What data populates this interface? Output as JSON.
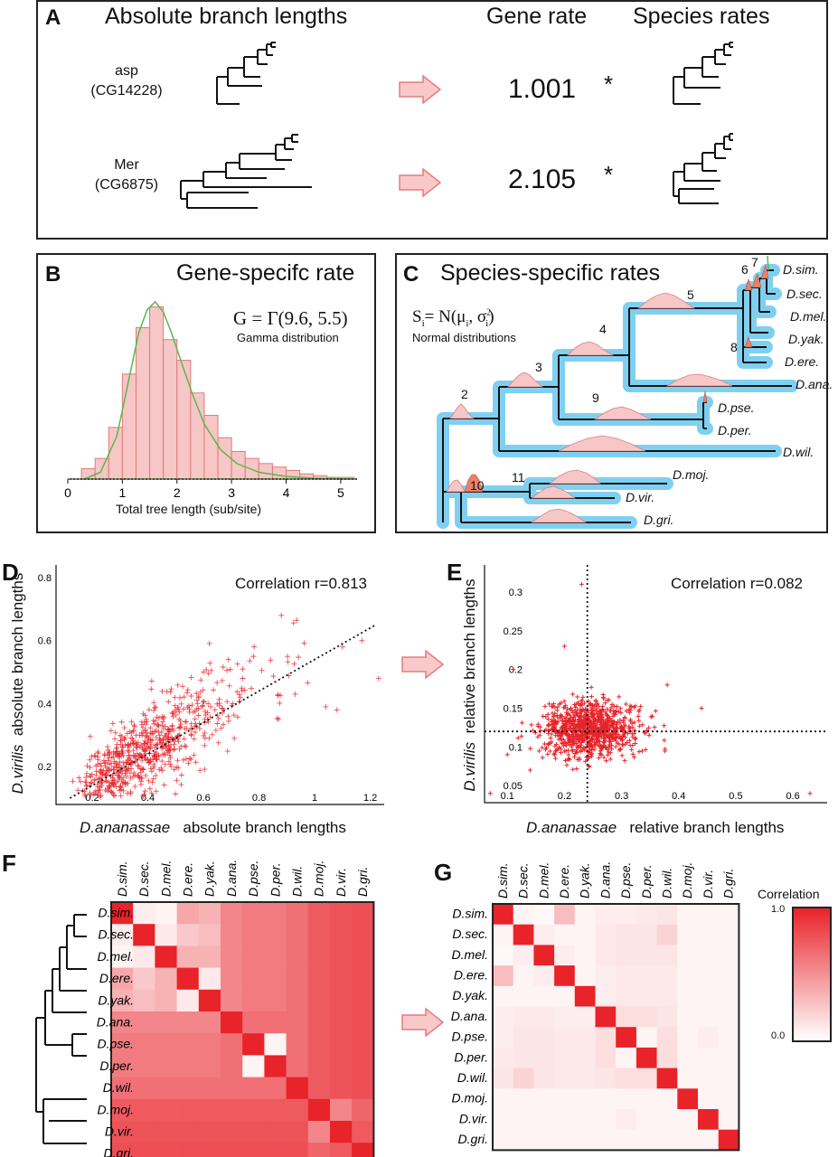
{
  "panelA": {
    "label": "A",
    "heading_abs": "Absolute branch lengths",
    "heading_gene": "Gene rate",
    "heading_species": "Species rates",
    "rows": [
      {
        "gene": "asp",
        "id": "(CG14228)",
        "rate": "1.001",
        "star": "*"
      },
      {
        "gene": "Mer",
        "id": "(CG6875)",
        "rate": "2.105",
        "star": "*"
      }
    ]
  },
  "panelB": {
    "label": "B",
    "title": "Gene-specifc rate",
    "formula": "G = Γ(9.6, 5.5)",
    "formula_note": "Gamma distribution",
    "xlabel": "Total tree length (sub/site)"
  },
  "panelC": {
    "label": "C",
    "title": "Species-specific rates",
    "formula_s": "S",
    "formula_i": "i",
    "formula_rest": "= N(μ",
    "formula_mu_i": "i",
    "formula_sep": ", σ",
    "formula_sig_i": "i",
    "formula_sig_sup": "2",
    "formula_close": ")",
    "formula_note": "Normal distributions",
    "species": [
      "D.sim.",
      "D.sec.",
      "D.mel.",
      "D.yak.",
      "D.ere.",
      "D.ana.",
      "D.pse.",
      "D.per.",
      "D.wil.",
      "D.moj.",
      "D.vir.",
      "D.gri."
    ],
    "node_numbers": [
      "2",
      "3",
      "4",
      "5",
      "6",
      "7",
      "8",
      "9",
      "10",
      "11"
    ]
  },
  "panelD": {
    "label": "D",
    "correlation": "Correlation r=0.813",
    "ylabel_ital": "D.virilis",
    "ylabel_rest": "absolute branch lengths",
    "xlabel_ital": "D.ananassae",
    "xlabel_rest": "absolute branch lengths"
  },
  "panelE": {
    "label": "E",
    "correlation": "Correlation r=0.082",
    "ylabel_ital": "D.virilis",
    "ylabel_rest": "relative branch lengths",
    "xlabel_ital": "D.ananassae",
    "xlabel_rest": "relative branch lengths"
  },
  "panelF": {
    "label": "F"
  },
  "panelG": {
    "label": "G",
    "legend_title": "Correlation",
    "legend_max": "1.0",
    "legend_min": "0.0"
  },
  "heatmap_species": [
    "D.sim.",
    "D.sec.",
    "D.mel.",
    "D.ere.",
    "D.yak.",
    "D.ana.",
    "D.pse.",
    "D.per.",
    "D.wil.",
    "D.moj.",
    "D.vir.",
    "D.gri."
  ],
  "colors": {
    "accent_red": "#e8232a",
    "pink_fill": "#f7c6c6",
    "pink_edge": "#e07a7a",
    "green_curve": "#5bb84a",
    "tree_blue": "#7fd0f0",
    "arrow_fill": "#f9c9c9",
    "arrow_edge": "#e57b7b"
  },
  "chart_data": [
    {
      "type": "bar",
      "id": "panelB-histogram",
      "title": "Gene-specifc rate",
      "xlabel": "Total tree length (sub/site)",
      "ylabel": "",
      "xlim": [
        0,
        5.3
      ],
      "xticks": [
        0,
        1,
        2,
        3,
        4,
        5
      ],
      "bin_edges": [
        0.25,
        0.5,
        0.75,
        1.0,
        1.25,
        1.5,
        1.75,
        2.0,
        2.25,
        2.5,
        2.75,
        3.0,
        3.25,
        3.5,
        3.75,
        4.0,
        4.25,
        4.5,
        4.75,
        5.0,
        5.25
      ],
      "values": [
        6,
        12,
        30,
        61,
        88,
        100,
        81,
        69,
        50,
        37,
        24,
        16,
        12,
        9,
        7,
        5,
        3,
        2,
        1,
        1
      ],
      "curve": {
        "name": "Gamma(9.6, 5.5)",
        "x": [
          0.3,
          0.6,
          0.9,
          1.1,
          1.3,
          1.45,
          1.6,
          1.75,
          1.9,
          2.1,
          2.3,
          2.5,
          2.8,
          3.1,
          3.5,
          4.0,
          4.5,
          5.2
        ],
        "y": [
          0,
          4,
          25,
          55,
          85,
          98,
          103,
          97,
          85,
          66,
          48,
          32,
          17,
          9,
          4,
          1.5,
          0.5,
          0
        ]
      }
    },
    {
      "type": "scatter",
      "id": "panelD-scatter",
      "title": "Correlation r=0.813",
      "xlabel": "D.ananassae absolute branch lengths",
      "ylabel": "D.virilis absolute branch lengths",
      "xlim": [
        0.07,
        1.25
      ],
      "ylim": [
        0.08,
        0.84
      ],
      "xticks": [
        0.2,
        0.4,
        0.6,
        0.8,
        1,
        1.2
      ],
      "yticks": [
        0.2,
        0.4,
        0.6,
        0.8
      ],
      "trend": {
        "from": [
          0.12,
          0.1
        ],
        "to": [
          1.22,
          0.65
        ]
      },
      "distribution": {
        "n": 700,
        "x_median": 0.38,
        "x_spread": 0.15,
        "slope": 0.55,
        "intercept": 0.04,
        "noise_sd": 0.065,
        "seed": 11
      },
      "outliers": [
        [
          0.88,
          0.68
        ],
        [
          1.17,
          0.6
        ],
        [
          1.1,
          0.58
        ],
        [
          1.23,
          0.48
        ],
        [
          1.04,
          0.39
        ],
        [
          1.08,
          0.38
        ],
        [
          0.93,
          0.43
        ],
        [
          0.78,
          0.55
        ],
        [
          0.69,
          0.54
        ],
        [
          0.6,
          0.5
        ],
        [
          0.87,
          0.35
        ]
      ]
    },
    {
      "type": "scatter",
      "id": "panelE-scatter",
      "title": "Correlation r=0.082",
      "xlabel": "D.ananassae relative branch lengths",
      "ylabel": "D.virilis relative branch lengths",
      "xlim": [
        0.06,
        0.66
      ],
      "ylim": [
        0.028,
        0.335
      ],
      "xticks": [
        0.1,
        0.2,
        0.3,
        0.4,
        0.5,
        0.6
      ],
      "yticks": [
        0.05,
        0.1,
        0.15,
        0.2,
        0.25,
        0.3
      ],
      "vline": 0.24,
      "hline": 0.12,
      "distribution": {
        "n": 900,
        "x_mean": 0.245,
        "x_sd": 0.042,
        "y_mean": 0.122,
        "y_sd": 0.018,
        "seed": 7
      },
      "outliers": [
        [
          0.23,
          0.31
        ],
        [
          0.2,
          0.23
        ],
        [
          0.11,
          0.2
        ],
        [
          0.44,
          0.15
        ],
        [
          0.63,
          0.04
        ],
        [
          0.07,
          0.04
        ],
        [
          0.38,
          0.18
        ],
        [
          0.14,
          0.07
        ],
        [
          0.1,
          0.09
        ]
      ]
    },
    {
      "type": "heatmap",
      "id": "panelF-heatmap",
      "rows": [
        "D.sim.",
        "D.sec.",
        "D.mel.",
        "D.ere.",
        "D.yak.",
        "D.ana.",
        "D.pse.",
        "D.per.",
        "D.wil.",
        "D.moj.",
        "D.vir.",
        "D.gri."
      ],
      "cols": [
        "D.sim.",
        "D.sec.",
        "D.mel.",
        "D.ere.",
        "D.yak.",
        "D.ana.",
        "D.pse.",
        "D.per.",
        "D.wil.",
        "D.moj.",
        "D.vir.",
        "D.gri."
      ],
      "scale": [
        0,
        1
      ],
      "values": [
        [
          1.0,
          0.08,
          0.05,
          0.4,
          0.35,
          0.55,
          0.6,
          0.6,
          0.65,
          0.75,
          0.78,
          0.8
        ],
        [
          0.08,
          1.0,
          0.1,
          0.25,
          0.3,
          0.55,
          0.6,
          0.6,
          0.65,
          0.75,
          0.78,
          0.8
        ],
        [
          0.05,
          0.1,
          1.0,
          0.35,
          0.35,
          0.55,
          0.6,
          0.6,
          0.65,
          0.75,
          0.78,
          0.8
        ],
        [
          0.4,
          0.25,
          0.35,
          1.0,
          0.1,
          0.55,
          0.6,
          0.6,
          0.65,
          0.75,
          0.78,
          0.8
        ],
        [
          0.35,
          0.3,
          0.35,
          0.1,
          1.0,
          0.55,
          0.6,
          0.6,
          0.65,
          0.75,
          0.78,
          0.8
        ],
        [
          0.55,
          0.55,
          0.55,
          0.55,
          0.55,
          1.0,
          0.65,
          0.65,
          0.65,
          0.75,
          0.78,
          0.8
        ],
        [
          0.6,
          0.6,
          0.6,
          0.6,
          0.6,
          0.65,
          1.0,
          0.05,
          0.65,
          0.75,
          0.78,
          0.8
        ],
        [
          0.6,
          0.6,
          0.6,
          0.6,
          0.6,
          0.65,
          0.05,
          1.0,
          0.65,
          0.75,
          0.78,
          0.8
        ],
        [
          0.65,
          0.65,
          0.65,
          0.65,
          0.65,
          0.65,
          0.65,
          0.65,
          1.0,
          0.75,
          0.78,
          0.8
        ],
        [
          0.75,
          0.75,
          0.75,
          0.75,
          0.75,
          0.75,
          0.75,
          0.75,
          0.75,
          1.0,
          0.55,
          0.7
        ],
        [
          0.78,
          0.78,
          0.78,
          0.78,
          0.78,
          0.78,
          0.78,
          0.78,
          0.78,
          0.55,
          1.0,
          0.75
        ],
        [
          0.8,
          0.8,
          0.8,
          0.8,
          0.8,
          0.8,
          0.8,
          0.8,
          0.8,
          0.7,
          0.75,
          1.0
        ]
      ]
    },
    {
      "type": "heatmap",
      "id": "panelG-heatmap",
      "rows": [
        "D.sim.",
        "D.sec.",
        "D.mel.",
        "D.ere.",
        "D.yak.",
        "D.ana.",
        "D.pse.",
        "D.per.",
        "D.wil.",
        "D.moj.",
        "D.vir.",
        "D.gri."
      ],
      "cols": [
        "D.sim.",
        "D.sec.",
        "D.mel.",
        "D.ere.",
        "D.yak.",
        "D.ana.",
        "D.pse.",
        "D.per.",
        "D.wil.",
        "D.moj.",
        "D.vir.",
        "D.gri."
      ],
      "scale": [
        0,
        1
      ],
      "values": [
        [
          1.0,
          0.05,
          0.03,
          0.3,
          0.05,
          0.08,
          0.08,
          0.1,
          0.12,
          0.05,
          0.05,
          0.05
        ],
        [
          0.05,
          1.0,
          0.08,
          0.05,
          0.05,
          0.1,
          0.12,
          0.12,
          0.2,
          0.05,
          0.05,
          0.05
        ],
        [
          0.03,
          0.08,
          1.0,
          0.08,
          0.05,
          0.1,
          0.12,
          0.12,
          0.12,
          0.05,
          0.05,
          0.05
        ],
        [
          0.3,
          0.05,
          0.08,
          1.0,
          0.05,
          0.08,
          0.1,
          0.1,
          0.1,
          0.05,
          0.05,
          0.05
        ],
        [
          0.05,
          0.05,
          0.05,
          0.05,
          1.0,
          0.08,
          0.1,
          0.1,
          0.1,
          0.05,
          0.05,
          0.05
        ],
        [
          0.08,
          0.1,
          0.1,
          0.08,
          0.08,
          1.0,
          0.15,
          0.15,
          0.12,
          0.05,
          0.05,
          0.05
        ],
        [
          0.08,
          0.12,
          0.12,
          0.1,
          0.1,
          0.15,
          1.0,
          0.05,
          0.15,
          0.05,
          0.08,
          0.05
        ],
        [
          0.1,
          0.12,
          0.12,
          0.1,
          0.1,
          0.15,
          0.05,
          1.0,
          0.15,
          0.05,
          0.05,
          0.05
        ],
        [
          0.12,
          0.2,
          0.12,
          0.1,
          0.1,
          0.12,
          0.15,
          0.15,
          1.0,
          0.05,
          0.05,
          0.05
        ],
        [
          0.05,
          0.05,
          0.05,
          0.05,
          0.05,
          0.05,
          0.05,
          0.05,
          0.05,
          1.0,
          0.05,
          0.05
        ],
        [
          0.05,
          0.05,
          0.05,
          0.05,
          0.05,
          0.05,
          0.08,
          0.05,
          0.05,
          0.05,
          1.0,
          0.05
        ],
        [
          0.05,
          0.05,
          0.05,
          0.05,
          0.05,
          0.05,
          0.05,
          0.05,
          0.05,
          0.05,
          0.05,
          1.0
        ]
      ]
    }
  ]
}
